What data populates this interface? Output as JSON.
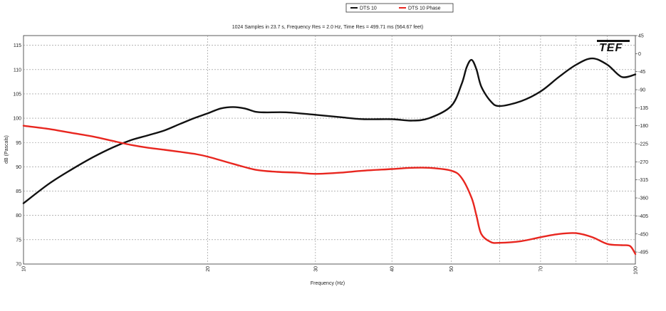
{
  "chart_data": {
    "type": "line",
    "title": "1024 Samples in 23.7 s, Frequency Res = 2.0 Hz, Time Res = 499.71 ms (564.67 feet)",
    "xlabel": "Frequency (Hz)",
    "ylabel": "dB (Pascals)",
    "logo": "TEF",
    "x_scale": "log",
    "xlim": [
      10,
      100
    ],
    "ylim": [
      70,
      117
    ],
    "y2lim": [
      -525,
      45
    ],
    "x_ticks": [
      10,
      20,
      30,
      40,
      50,
      70,
      100
    ],
    "x_tick_labels": [
      "10",
      "20",
      "30",
      "40",
      "50",
      "70",
      "100"
    ],
    "x_minor_ticks": [
      60,
      80,
      90
    ],
    "y_ticks": [
      70,
      75,
      80,
      85,
      90,
      95,
      100,
      105,
      110,
      115
    ],
    "y_tick_labels": [
      "70",
      "75",
      "80",
      "85",
      "90",
      "95",
      "100",
      "105",
      "110",
      "115"
    ],
    "y2_ticks": [
      45,
      0,
      -45,
      -90,
      -135,
      -180,
      -225,
      -270,
      -315,
      -360,
      -405,
      -450,
      -495
    ],
    "y2_tick_labels": [
      "45",
      "0",
      "-45",
      "-90",
      "-135",
      "-180",
      "-225",
      "-270",
      "-315",
      "-360",
      "-405",
      "-450",
      "-495"
    ],
    "grid": true,
    "legend_position": "top-center",
    "series": [
      {
        "name": "DTS 10",
        "axis": "left",
        "color": "#111111",
        "x": [
          10,
          11,
          12,
          13,
          14,
          15,
          16,
          17,
          18,
          19,
          20,
          21,
          22,
          23,
          24,
          25,
          27,
          30,
          33,
          36,
          40,
          43,
          46,
          50,
          52,
          53,
          54,
          55,
          56,
          58,
          60,
          65,
          70,
          75,
          80,
          85,
          90,
          95,
          100
        ],
        "values": [
          82.5,
          86.5,
          89.5,
          92.0,
          94.0,
          95.5,
          96.5,
          97.5,
          98.8,
          100.0,
          101.0,
          102.0,
          102.3,
          102.0,
          101.3,
          101.2,
          101.2,
          100.7,
          100.2,
          99.8,
          99.8,
          99.5,
          100.0,
          102.5,
          107.0,
          110.5,
          112.0,
          110.0,
          106.5,
          103.5,
          102.5,
          103.5,
          105.5,
          108.5,
          111.0,
          112.3,
          111.0,
          108.5,
          109.0
        ]
      },
      {
        "name": "DTS 10 Phase",
        "axis": "right",
        "color": "#e8261f",
        "x": [
          10,
          11,
          12,
          13,
          14,
          15,
          16,
          17,
          18,
          19,
          20,
          22,
          24,
          26,
          28,
          30,
          33,
          36,
          40,
          43,
          46,
          50,
          52,
          54,
          55,
          56,
          58,
          60,
          65,
          70,
          75,
          80,
          85,
          90,
          95,
          98,
          100
        ],
        "values": [
          -180,
          -188,
          -198,
          -207,
          -218,
          -228,
          -235,
          -240,
          -245,
          -250,
          -257,
          -275,
          -290,
          -295,
          -297,
          -300,
          -297,
          -292,
          -288,
          -285,
          -285,
          -292,
          -310,
          -360,
          -405,
          -450,
          -470,
          -472,
          -468,
          -458,
          -450,
          -448,
          -458,
          -475,
          -478,
          -480,
          -500
        ]
      }
    ]
  }
}
